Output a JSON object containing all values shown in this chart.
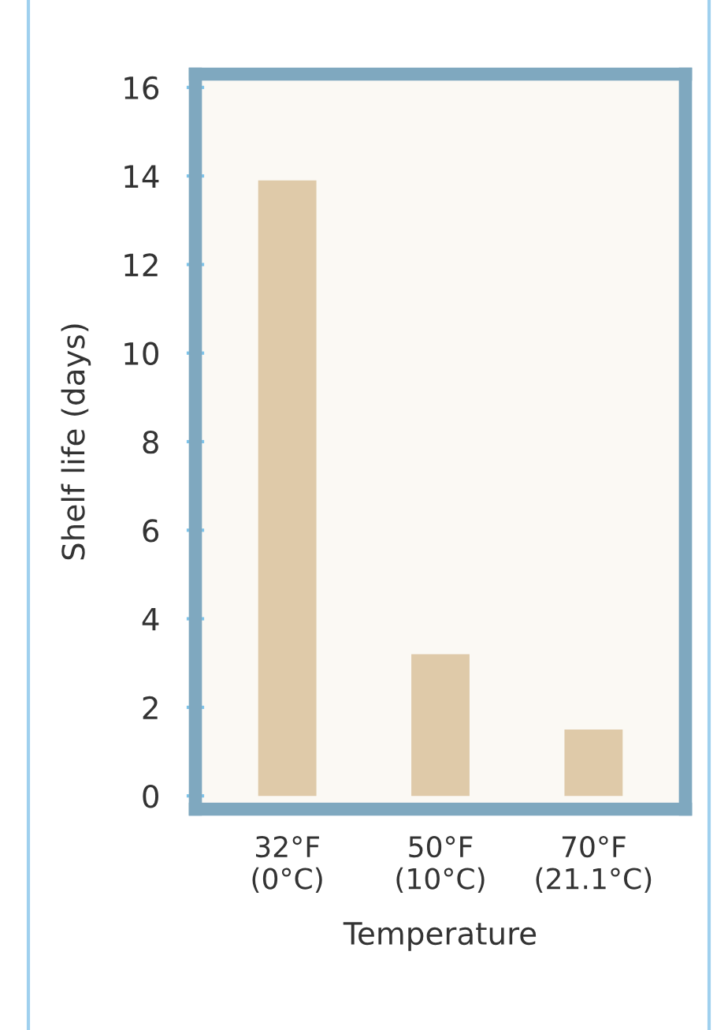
{
  "chart_data": {
    "type": "bar",
    "categories": [
      "32°F\n(0°C)",
      "50°F\n(10°C)",
      "70°F\n(21.1°C)"
    ],
    "values": [
      13.9,
      3.2,
      1.5
    ],
    "color": "#dfcaa9",
    "xlabel": "Temperature",
    "ylabel": "Shelf life (days)",
    "ylim": [
      -0.3,
      16.3
    ],
    "yticks": [
      0,
      2,
      4,
      6,
      8,
      10,
      12,
      14,
      16
    ],
    "grid": false
  }
}
